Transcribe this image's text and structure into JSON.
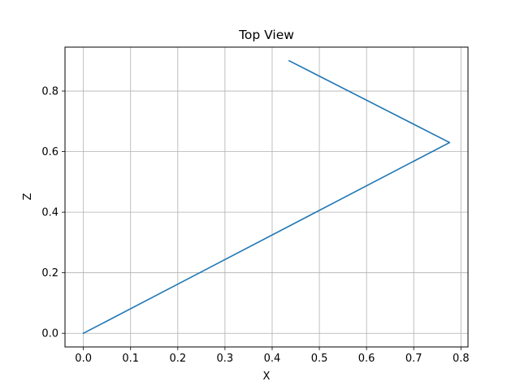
{
  "chart_data": {
    "type": "line",
    "title": "Top View",
    "xlabel": "X",
    "ylabel": "Z",
    "xlim": [
      -0.039,
      0.815
    ],
    "ylim": [
      -0.045,
      0.945
    ],
    "xticks": [
      0.0,
      0.1,
      0.2,
      0.3,
      0.4,
      0.5,
      0.6,
      0.7,
      0.8
    ],
    "yticks": [
      0.0,
      0.2,
      0.4,
      0.6,
      0.8
    ],
    "xtick_labels": [
      "0.0",
      "0.1",
      "0.2",
      "0.3",
      "0.4",
      "0.5",
      "0.6",
      "0.7",
      "0.8"
    ],
    "ytick_labels": [
      "0.0",
      "0.2",
      "0.4",
      "0.6",
      "0.8"
    ],
    "grid": true,
    "series": [
      {
        "color": "#1f77b4",
        "x": [
          0.0,
          0.776,
          0.436
        ],
        "y": [
          0.0,
          0.63,
          0.9
        ]
      }
    ]
  }
}
